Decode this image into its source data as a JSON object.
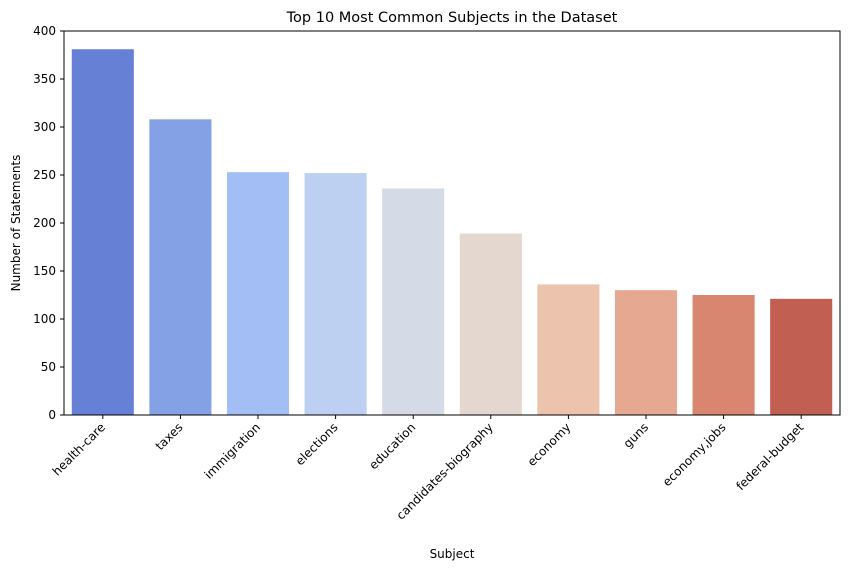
{
  "chart_data": {
    "type": "bar",
    "title": "Top 10 Most Common Subjects in the Dataset",
    "xlabel": "Subject",
    "ylabel": "Number of Statements",
    "categories": [
      "health-care",
      "taxes",
      "immigration",
      "elections",
      "education",
      "candidates-biography",
      "economy",
      "guns",
      "economy,jobs",
      "federal-budget"
    ],
    "values": [
      381,
      308,
      253,
      252,
      236,
      189,
      136,
      130,
      125,
      121
    ],
    "colors": [
      "#6680d6",
      "#84a1e5",
      "#a2bef4",
      "#bdd0f2",
      "#d5dbe6",
      "#e4d7cf",
      "#ecc4ae",
      "#e6a890",
      "#d98670",
      "#c25f53"
    ],
    "ylim": [
      0,
      400
    ],
    "yticks": [
      0,
      50,
      100,
      150,
      200,
      250,
      300,
      350,
      400
    ],
    "grid": false,
    "legend": "none"
  }
}
